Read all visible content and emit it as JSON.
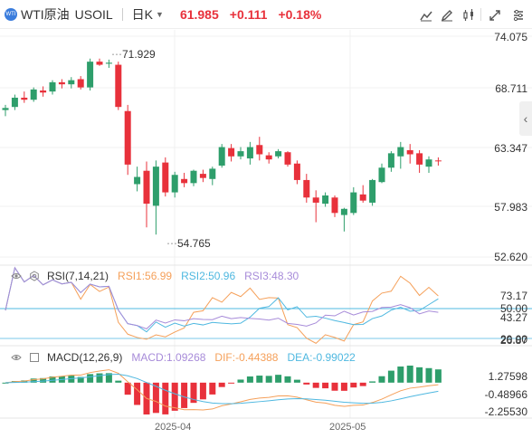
{
  "symbol": {
    "name": "WTI原油",
    "code": "USOIL",
    "icon": "WTI",
    "period": "日K",
    "price": "61.985",
    "change": "+0.111",
    "change_pct": "+0.18%"
  },
  "colors": {
    "up": "#2e9e6b",
    "down": "#e8313b",
    "rsi1": "#f5a05a",
    "rsi2": "#4fb8e0",
    "rsi3": "#a78bd9",
    "dif": "#f5a05a",
    "dea": "#4fb8e0"
  },
  "toolbar_icons": [
    "line-draw-icon",
    "pen-icon",
    "candle-settings-icon",
    "fullscreen-icon",
    "settings-icon"
  ],
  "price_axis": [
    "74.075",
    "68.711",
    "63.347",
    "57.983",
    "52.620"
  ],
  "annotations": {
    "high": "71.929",
    "low": "54.765"
  },
  "rsi": {
    "label": "RSI(7,14,21)",
    "rsi1": "RSI1:56.99",
    "rsi2": "RSI2:50.96",
    "rsi3": "RSI3:48.30",
    "axis": [
      "73.17",
      "50.00",
      "43.27",
      "20.00",
      "26.87"
    ]
  },
  "macd": {
    "label": "MACD(12,26,9)",
    "macd": "MACD:1.09268",
    "dif": "DIF:-0.44388",
    "dea": "DEA:-0.99022",
    "axis": [
      "1.27598",
      "-0.48966",
      "-2.25530"
    ]
  },
  "x_axis": [
    "2025-04",
    "2025-05"
  ],
  "chart_data": {
    "type": "candlestick",
    "ylim": [
      52.62,
      74.075
    ],
    "candles": [
      [
        66.9,
        67.4,
        66.3,
        67.1
      ],
      [
        67.2,
        68.4,
        66.9,
        68.1
      ],
      [
        68.1,
        68.7,
        67.6,
        67.9
      ],
      [
        67.9,
        69.1,
        67.7,
        68.9
      ],
      [
        68.8,
        69.2,
        68.2,
        68.6
      ],
      [
        68.7,
        69.8,
        68.4,
        69.6
      ],
      [
        69.6,
        69.9,
        69.0,
        69.4
      ],
      [
        69.4,
        70.1,
        69.0,
        69.8
      ],
      [
        69.9,
        70.2,
        68.9,
        69.1
      ],
      [
        69.1,
        71.9,
        68.8,
        71.6
      ],
      [
        71.6,
        71.9,
        71.2,
        71.3
      ],
      [
        71.4,
        71.8,
        71.0,
        71.5
      ],
      [
        71.3,
        71.6,
        66.9,
        67.2
      ],
      [
        66.8,
        67.4,
        60.6,
        61.6
      ],
      [
        59.7,
        61.4,
        59.0,
        60.4
      ],
      [
        61.0,
        61.9,
        55.5,
        57.8
      ],
      [
        57.6,
        62.0,
        54.8,
        61.4
      ],
      [
        61.8,
        62.3,
        58.5,
        58.9
      ],
      [
        58.9,
        60.9,
        58.4,
        60.6
      ],
      [
        60.2,
        60.8,
        59.4,
        59.8
      ],
      [
        59.8,
        61.1,
        59.5,
        61.0
      ],
      [
        60.7,
        61.1,
        59.9,
        60.3
      ],
      [
        60.2,
        61.4,
        59.6,
        61.2
      ],
      [
        61.5,
        63.6,
        61.3,
        63.3
      ],
      [
        63.2,
        63.6,
        61.9,
        62.4
      ],
      [
        62.4,
        63.3,
        62.1,
        62.9
      ],
      [
        62.2,
        63.8,
        61.6,
        63.3
      ],
      [
        63.5,
        64.3,
        62.0,
        62.6
      ],
      [
        62.5,
        62.8,
        61.7,
        62.1
      ],
      [
        62.4,
        63.1,
        62.2,
        62.9
      ],
      [
        62.8,
        62.9,
        61.4,
        61.6
      ],
      [
        61.7,
        62.0,
        59.7,
        60.1
      ],
      [
        60.1,
        60.7,
        57.9,
        58.4
      ],
      [
        58.4,
        59.1,
        56.0,
        57.9
      ],
      [
        57.8,
        58.9,
        57.5,
        58.6
      ],
      [
        58.4,
        58.6,
        56.5,
        56.9
      ],
      [
        56.7,
        57.4,
        55.1,
        57.3
      ],
      [
        56.9,
        59.4,
        56.7,
        58.9
      ],
      [
        58.7,
        59.6,
        57.9,
        58.1
      ],
      [
        57.9,
        60.2,
        57.6,
        60.1
      ],
      [
        59.9,
        61.7,
        59.8,
        61.3
      ],
      [
        61.3,
        62.9,
        60.9,
        62.7
      ],
      [
        62.4,
        63.8,
        61.2,
        63.3
      ],
      [
        63.0,
        63.6,
        61.7,
        62.6
      ],
      [
        62.7,
        63.0,
        60.8,
        61.6
      ],
      [
        61.4,
        62.4,
        60.8,
        62.1
      ],
      [
        62.0,
        62.3,
        61.5,
        61.98
      ]
    ]
  }
}
